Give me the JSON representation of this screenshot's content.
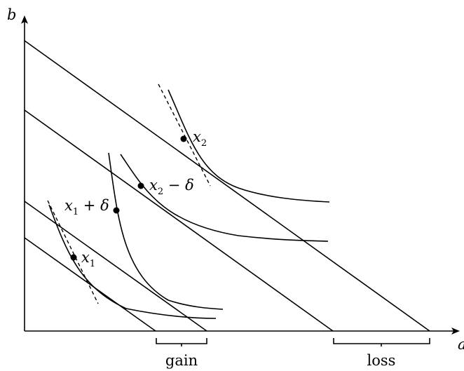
{
  "axes": {
    "y_label": "b",
    "x_label": "a"
  },
  "points": {
    "x2": {
      "base": "x",
      "sub": "2",
      "suffix": ""
    },
    "x2_minus_delta": {
      "base": "x",
      "sub": "2",
      "suffix": " − δ"
    },
    "x1_plus_delta": {
      "base": "x",
      "sub": "1",
      "suffix": " + δ"
    },
    "x1": {
      "base": "x",
      "sub": "1",
      "suffix": ""
    }
  },
  "brackets": {
    "gain": "gain",
    "loss": "loss"
  }
}
